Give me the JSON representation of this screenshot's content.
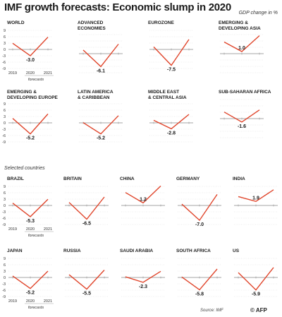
{
  "title": "IMF growth forecasts: Economic slump in 2020",
  "subtitle": "GDP change in %",
  "section_label": "Selected countries",
  "source": "Source: IMF",
  "logo": "© AFP",
  "colors": {
    "line": "#e0452b",
    "grid": "#c8c8c8",
    "axis": "#888888",
    "text": "#1a1a1a"
  },
  "chart_data": {
    "type": "line",
    "x": [
      "2019",
      "2020",
      "2021"
    ],
    "x_note": "forecasts",
    "ylim": [
      -9,
      9
    ],
    "yticks": [
      "9",
      "6",
      "3",
      "0",
      "-3",
      "-6",
      "-9"
    ],
    "panels": [
      {
        "name": [
          "WORLD"
        ],
        "values": [
          2.9,
          -3.0,
          5.8
        ]
      },
      {
        "name": [
          "ADVANCED",
          "ECONOMIES"
        ],
        "values": [
          1.7,
          -6.1,
          4.5
        ]
      },
      {
        "name": [
          "EUROZONE"
        ],
        "values": [
          1.2,
          -7.5,
          4.7
        ]
      },
      {
        "name": [
          "EMERGING &",
          "DEVELOPING ASIA"
        ],
        "values": [
          5.5,
          1.0,
          8.5
        ]
      },
      {
        "name": [
          "EMERGING &",
          "DEVELOPING EUROPE"
        ],
        "values": [
          2.1,
          -5.2,
          4.2
        ]
      },
      {
        "name": [
          "LATIN AMERICA",
          "& CARIBBEAN"
        ],
        "values": [
          0.1,
          -5.2,
          3.4
        ]
      },
      {
        "name": [
          "MIDDLE EAST",
          "& CENTRAL ASIA"
        ],
        "values": [
          1.2,
          -2.8,
          4.0
        ]
      },
      {
        "name": [
          "SUB-SAHARAN AFRICA"
        ],
        "values": [
          3.1,
          -1.6,
          4.1
        ]
      },
      {
        "name": [
          "BRAZIL"
        ],
        "values": [
          1.1,
          -5.3,
          2.9
        ]
      },
      {
        "name": [
          "BRITAIN"
        ],
        "values": [
          1.4,
          -6.5,
          4.0
        ]
      },
      {
        "name": [
          "CHINA"
        ],
        "values": [
          6.1,
          1.2,
          9.2
        ]
      },
      {
        "name": [
          "GERMANY"
        ],
        "values": [
          0.6,
          -7.0,
          5.2
        ]
      },
      {
        "name": [
          "INDIA"
        ],
        "values": [
          4.2,
          1.9,
          7.4
        ]
      },
      {
        "name": [
          "JAPAN"
        ],
        "values": [
          0.7,
          -5.2,
          3.0
        ]
      },
      {
        "name": [
          "RUSSIA"
        ],
        "values": [
          1.3,
          -5.5,
          3.5
        ]
      },
      {
        "name": [
          "SAUDI ARABIA"
        ],
        "values": [
          0.3,
          -2.3,
          2.9
        ]
      },
      {
        "name": [
          "SOUTH AFRICA"
        ],
        "values": [
          0.2,
          -5.8,
          4.0
        ]
      },
      {
        "name": [
          "US"
        ],
        "values": [
          2.3,
          -5.9,
          4.7
        ]
      }
    ]
  }
}
